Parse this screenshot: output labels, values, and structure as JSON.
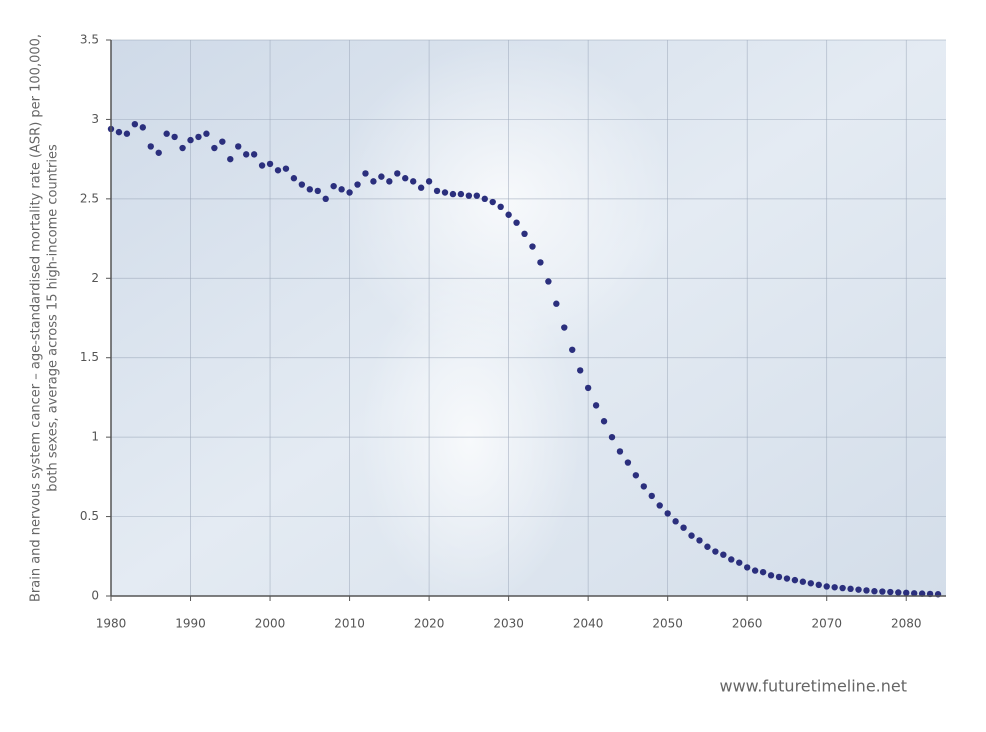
{
  "chart_data": {
    "type": "scatter",
    "ylabel": [
      "Brain and nervous system cancer – age-standardised mortality rate (ASR) per 100,000,",
      "both sexes, average across 15 high-income countries"
    ],
    "source": "www.futuretimeline.net",
    "x": [
      1980,
      1981,
      1982,
      1983,
      1984,
      1985,
      1986,
      1987,
      1988,
      1989,
      1990,
      1991,
      1992,
      1993,
      1994,
      1995,
      1996,
      1997,
      1998,
      1999,
      2000,
      2001,
      2002,
      2003,
      2004,
      2005,
      2006,
      2007,
      2008,
      2009,
      2010,
      2011,
      2012,
      2013,
      2014,
      2015,
      2016,
      2017,
      2018,
      2019,
      2020,
      2021,
      2022,
      2023,
      2024,
      2025,
      2026,
      2027,
      2028,
      2029,
      2030,
      2031,
      2032,
      2033,
      2034,
      2035,
      2036,
      2037,
      2038,
      2039,
      2040,
      2041,
      2042,
      2043,
      2044,
      2045,
      2046,
      2047,
      2048,
      2049,
      2050,
      2051,
      2052,
      2053,
      2054,
      2055,
      2056,
      2057,
      2058,
      2059,
      2060,
      2061,
      2062,
      2063,
      2064,
      2065,
      2066,
      2067,
      2068,
      2069,
      2070,
      2071,
      2072,
      2073,
      2074,
      2075,
      2076,
      2077,
      2078,
      2079,
      2080,
      2081,
      2082,
      2083,
      2084
    ],
    "values": [
      2.94,
      2.92,
      2.91,
      2.97,
      2.95,
      2.83,
      2.79,
      2.91,
      2.89,
      2.82,
      2.87,
      2.89,
      2.91,
      2.82,
      2.86,
      2.75,
      2.83,
      2.78,
      2.78,
      2.71,
      2.72,
      2.68,
      2.69,
      2.63,
      2.59,
      2.56,
      2.55,
      2.5,
      2.58,
      2.56,
      2.54,
      2.59,
      2.66,
      2.61,
      2.64,
      2.61,
      2.66,
      2.63,
      2.61,
      2.57,
      2.61,
      2.55,
      2.54,
      2.53,
      2.53,
      2.52,
      2.52,
      2.5,
      2.48,
      2.45,
      2.4,
      2.35,
      2.28,
      2.2,
      2.1,
      1.98,
      1.84,
      1.69,
      1.55,
      1.42,
      1.31,
      1.2,
      1.1,
      1.0,
      0.91,
      0.84,
      0.76,
      0.69,
      0.63,
      0.57,
      0.52,
      0.47,
      0.43,
      0.38,
      0.35,
      0.31,
      0.28,
      0.26,
      0.23,
      0.21,
      0.18,
      0.16,
      0.15,
      0.13,
      0.12,
      0.11,
      0.1,
      0.09,
      0.08,
      0.07,
      0.06,
      0.055,
      0.05,
      0.045,
      0.04,
      0.035,
      0.03,
      0.028,
      0.025,
      0.022,
      0.02,
      0.017,
      0.015,
      0.013,
      0.011
    ],
    "color": "#2b2f7d",
    "xlim": [
      1980,
      2085
    ],
    "xticks": [
      1980,
      1990,
      2000,
      2010,
      2020,
      2030,
      2040,
      2050,
      2060,
      2070,
      2080
    ],
    "ylim": [
      0,
      3.5
    ],
    "yticks": [
      0,
      0.5,
      1,
      1.5,
      2,
      2.5,
      3,
      3.5
    ],
    "grid": true
  }
}
